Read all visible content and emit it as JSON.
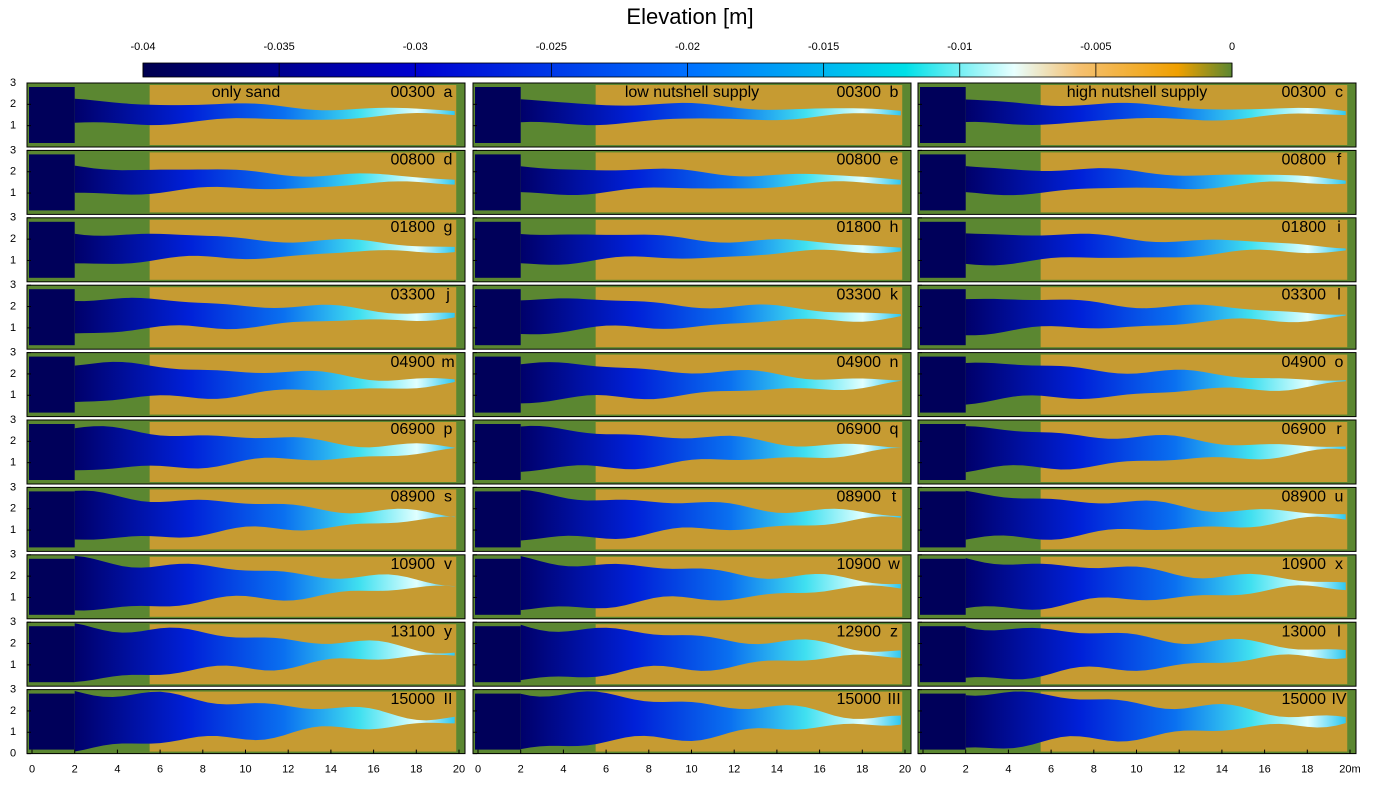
{
  "colorbar": {
    "title": "Elevation [m]",
    "lim": [
      -0.04,
      0
    ],
    "ticks": [
      -0.04,
      -0.035,
      -0.03,
      -0.025,
      -0.02,
      -0.015,
      -0.01,
      -0.005,
      0
    ]
  },
  "ylim": [
    0,
    3
  ],
  "yticks": [
    0,
    1,
    2,
    3
  ],
  "xlim": [
    0,
    20
  ],
  "columns": [
    {
      "title": "only sand",
      "xticks": [
        0,
        2,
        4,
        6,
        8,
        10,
        12,
        14,
        16,
        18,
        20
      ],
      "panels": [
        {
          "time": "00300",
          "letter": "a"
        },
        {
          "time": "00800",
          "letter": "d"
        },
        {
          "time": "01800",
          "letter": "g"
        },
        {
          "time": "03300",
          "letter": "j"
        },
        {
          "time": "04900",
          "letter": "m"
        },
        {
          "time": "06900",
          "letter": "p"
        },
        {
          "time": "08900",
          "letter": "s"
        },
        {
          "time": "10900",
          "letter": "v"
        },
        {
          "time": "13100",
          "letter": "y"
        },
        {
          "time": "15000",
          "letter": "II"
        }
      ]
    },
    {
      "title": "low nutshell supply",
      "xticks": [
        0,
        2,
        4,
        6,
        8,
        10,
        12,
        14,
        16,
        18,
        20
      ],
      "panels": [
        {
          "time": "00300",
          "letter": "b"
        },
        {
          "time": "00800",
          "letter": "e"
        },
        {
          "time": "01800",
          "letter": "h"
        },
        {
          "time": "03300",
          "letter": "k"
        },
        {
          "time": "04900",
          "letter": "n"
        },
        {
          "time": "06900",
          "letter": "q"
        },
        {
          "time": "08900",
          "letter": "t"
        },
        {
          "time": "10900",
          "letter": "w"
        },
        {
          "time": "12900",
          "letter": "z"
        },
        {
          "time": "15000",
          "letter": "III"
        }
      ]
    },
    {
      "title": "high nutshell supply",
      "xticks": [
        0,
        2,
        4,
        6,
        8,
        10,
        12,
        14,
        16,
        18,
        {
          "value": 20,
          "label": "20m"
        }
      ],
      "panels": [
        {
          "time": "00300",
          "letter": "c"
        },
        {
          "time": "00800",
          "letter": "f"
        },
        {
          "time": "01800",
          "letter": "i"
        },
        {
          "time": "03300",
          "letter": "l"
        },
        {
          "time": "04900",
          "letter": "o"
        },
        {
          "time": "06900",
          "letter": "r"
        },
        {
          "time": "08900",
          "letter": "u"
        },
        {
          "time": "10900",
          "letter": "x"
        },
        {
          "time": "13000",
          "letter": "I"
        },
        {
          "time": "15000",
          "letter": "IV"
        }
      ]
    }
  ]
}
